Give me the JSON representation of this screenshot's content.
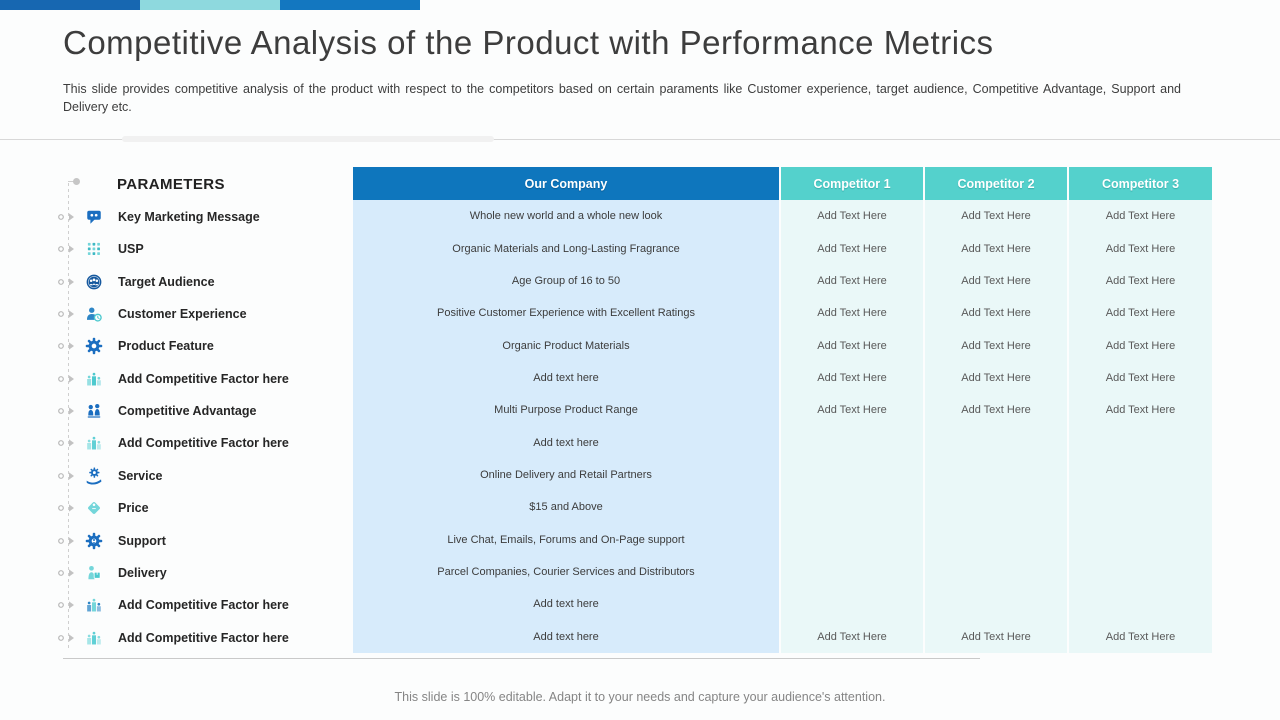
{
  "slide": {
    "title": "Competitive Analysis of the Product with Performance Metrics",
    "subtitle": "This slide provides competitive analysis of the product with respect to the competitors based on certain paraments like Customer experience, target audience, Competitive Advantage, Support and Delivery etc.",
    "footer": "This slide is 100% editable. Adapt it to your needs and capture your audience's attention."
  },
  "top_bar": {
    "segments": [
      {
        "color": "#1767b1"
      },
      {
        "color": "#8ed9de"
      },
      {
        "color": "#1377c0"
      }
    ]
  },
  "parameters_panel": {
    "heading": "PARAMETERS",
    "items": [
      {
        "label": "Key Marketing Message",
        "icon": "speech-bubble-icon",
        "color": "#1b6ec0",
        "accent": "#74d6da"
      },
      {
        "label": "USP",
        "icon": "grid-dots-icon",
        "color": "#74d6da",
        "accent": "#3fb9c4"
      },
      {
        "label": "Target Audience",
        "icon": "target-audience-icon",
        "color": "#15589e",
        "accent": "#74d6da"
      },
      {
        "label": "Customer Experience",
        "icon": "customer-experience-icon",
        "color": "#2e86c6",
        "accent": "#4cc9ce"
      },
      {
        "label": "Product Feature",
        "icon": "gear-icon",
        "color": "#1b6ec0",
        "accent": "#74d6da"
      },
      {
        "label": "Add Competitive Factor here",
        "icon": "podium-icon",
        "color": "#74d6da",
        "accent": "#4cc9ce"
      },
      {
        "label": "Competitive Advantage",
        "icon": "advantage-people-icon",
        "color": "#1b6ec0",
        "accent": "#74d6da"
      },
      {
        "label": "Add Competitive Factor here",
        "icon": "podium-icon",
        "color": "#8adde0",
        "accent": "#5fd0d5"
      },
      {
        "label": "Service",
        "icon": "hand-gear-icon",
        "color": "#1b6ec0",
        "accent": "#2e86c6"
      },
      {
        "label": "Price",
        "icon": "price-tag-icon",
        "color": "#74d6da",
        "accent": "#4cc9ce"
      },
      {
        "label": "Support",
        "icon": "support-gear-icon",
        "color": "#1b6ec0",
        "accent": "#ffffff"
      },
      {
        "label": "Delivery",
        "icon": "delivery-icon",
        "color": "#74d6da",
        "accent": "#4cc9ce"
      },
      {
        "label": "Add Competitive Factor here",
        "icon": "podium-icon",
        "color": "#2e86c6",
        "accent": "#74d6da"
      },
      {
        "label": "Add Competitive Factor here",
        "icon": "podium-icon",
        "color": "#8adde0",
        "accent": "#5fd0d5"
      }
    ]
  },
  "table": {
    "columns": [
      {
        "label": "Our Company",
        "type": "primary"
      },
      {
        "label": "Competitor 1",
        "type": "competitor"
      },
      {
        "label": "Competitor 2",
        "type": "competitor"
      },
      {
        "label": "Competitor 3",
        "type": "competitor"
      }
    ],
    "rows": [
      {
        "our_company": "Whole new world and a whole new look",
        "competitors": [
          "Add Text Here",
          "Add Text Here",
          "Add Text Here"
        ]
      },
      {
        "our_company": "Organic Materials and Long-Lasting Fragrance",
        "competitors": [
          "Add Text Here",
          "Add Text Here",
          "Add Text Here"
        ]
      },
      {
        "our_company": "Age Group of 16 to 50",
        "competitors": [
          "Add Text Here",
          "Add Text Here",
          "Add Text Here"
        ]
      },
      {
        "our_company": "Positive Customer Experience with Excellent Ratings",
        "competitors": [
          "Add Text Here",
          "Add Text Here",
          "Add Text Here"
        ]
      },
      {
        "our_company": "Organic Product Materials",
        "competitors": [
          "Add Text Here",
          "Add Text Here",
          "Add Text Here"
        ]
      },
      {
        "our_company": "Add text here",
        "competitors": [
          "Add Text Here",
          "Add Text Here",
          "Add Text Here"
        ]
      },
      {
        "our_company": "Multi Purpose Product Range",
        "competitors": [
          "Add Text Here",
          "Add Text Here",
          "Add Text Here"
        ]
      },
      {
        "our_company": "Add text here",
        "competitors": [
          "",
          "",
          ""
        ]
      },
      {
        "our_company": "Online Delivery and Retail Partners",
        "competitors": [
          "",
          "",
          ""
        ]
      },
      {
        "our_company": "$15 and Above",
        "competitors": [
          "",
          "",
          ""
        ]
      },
      {
        "our_company": "Live Chat, Emails, Forums and On-Page support",
        "competitors": [
          "",
          "",
          ""
        ]
      },
      {
        "our_company": "Parcel Companies, Courier Services and Distributors",
        "competitors": [
          "",
          "",
          ""
        ]
      },
      {
        "our_company": "Add text here",
        "competitors": [
          "",
          "",
          ""
        ]
      },
      {
        "our_company": "Add text here",
        "competitors": [
          "Add Text Here",
          "Add Text Here",
          "Add Text Here"
        ]
      }
    ]
  },
  "colors": {
    "header_blue": "#0e76bd",
    "header_teal": "#54d1cc",
    "body_blue": "#d7ebfb",
    "body_teal": "#eaf8f8",
    "title_text": "#3d3d3d",
    "cell_text": "#3c3c3c",
    "competitor_text": "#595959",
    "footer_text": "#858585"
  }
}
